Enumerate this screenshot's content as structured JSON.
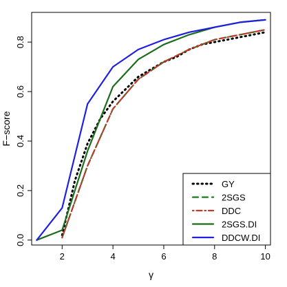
{
  "chart_data": {
    "type": "line",
    "title": "",
    "xlabel": "γ",
    "ylabel": "F−score",
    "xlim": [
      0.8,
      10.2
    ],
    "ylim": [
      -0.02,
      0.92
    ],
    "x_ticks": [
      2,
      4,
      6,
      8,
      10
    ],
    "y_ticks": [
      0.0,
      0.2,
      0.4,
      0.6,
      0.8
    ],
    "x_tick_labels": [
      "2",
      "4",
      "6",
      "8",
      "10"
    ],
    "y_tick_labels": [
      "0.0",
      "0.2",
      "0.4",
      "0.6",
      "0.8"
    ],
    "grid": false,
    "legend_position": "bottom-right",
    "series": [
      {
        "name": "GY",
        "style": "dotted",
        "color": "#000000",
        "x": [
          2,
          2.5,
          3,
          3.5,
          4,
          4.5,
          5,
          5.5,
          6,
          6.5,
          7,
          7.5,
          8,
          8.5,
          9,
          9.5,
          10
        ],
        "y": [
          0.02,
          0.24,
          0.39,
          0.49,
          0.56,
          0.61,
          0.66,
          0.69,
          0.72,
          0.74,
          0.77,
          0.79,
          0.8,
          0.81,
          0.82,
          0.83,
          0.84
        ]
      },
      {
        "name": "2SGS",
        "style": "dashed",
        "color": "#1a7a1a",
        "x": [
          2,
          3,
          4,
          5,
          6,
          7,
          8,
          9,
          10
        ],
        "y": [
          0.01,
          0.3,
          0.53,
          0.65,
          0.72,
          0.77,
          0.81,
          0.83,
          0.85
        ]
      },
      {
        "name": "DDC",
        "style": "dotdash",
        "color": "#c0392b",
        "x": [
          2,
          3,
          4,
          5,
          6,
          7,
          8,
          9,
          10
        ],
        "y": [
          0.01,
          0.3,
          0.53,
          0.65,
          0.72,
          0.77,
          0.81,
          0.83,
          0.85
        ]
      },
      {
        "name": "2SGS.DI",
        "style": "solid",
        "color": "#1a6b1a",
        "x": [
          1,
          2,
          3,
          4,
          5,
          6,
          7,
          8,
          9,
          10
        ],
        "y": [
          0.0,
          0.04,
          0.36,
          0.62,
          0.73,
          0.79,
          0.83,
          0.86,
          0.88,
          0.89
        ]
      },
      {
        "name": "DDCW.DI",
        "style": "solid",
        "color": "#1f1fe0",
        "x": [
          1,
          2,
          3,
          4,
          5,
          6,
          7,
          8,
          9,
          10
        ],
        "y": [
          0.0,
          0.13,
          0.55,
          0.7,
          0.77,
          0.81,
          0.84,
          0.86,
          0.88,
          0.89
        ]
      }
    ]
  }
}
